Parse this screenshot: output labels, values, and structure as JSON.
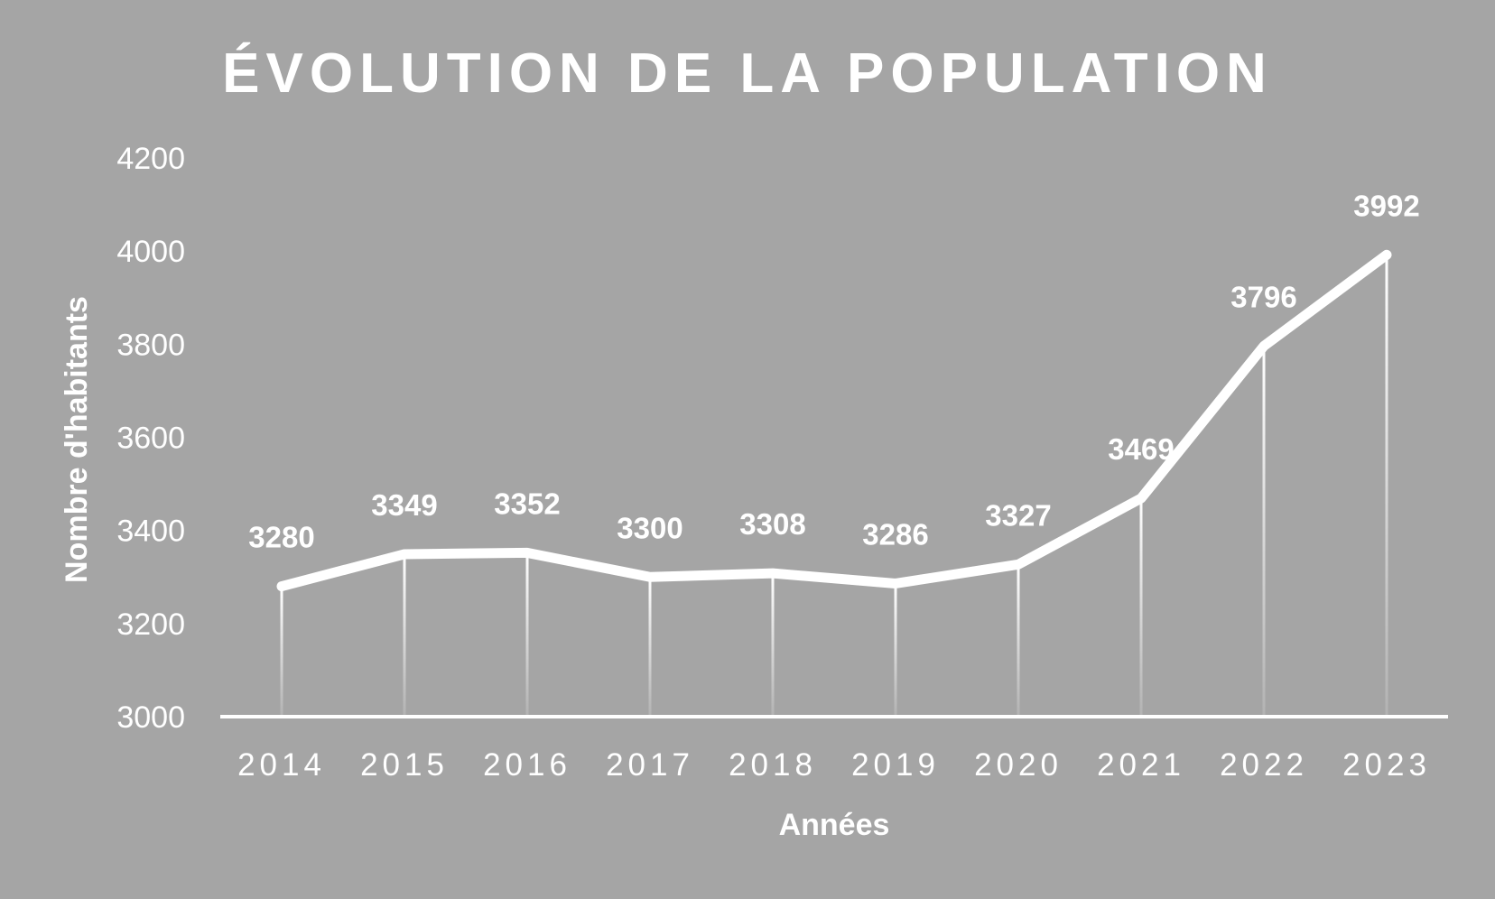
{
  "chart_data": {
    "type": "line",
    "title": "ÉVOLUTION DE LA POPULATION",
    "xlabel": "Années",
    "ylabel": "Nombre d'habitants",
    "categories": [
      "2014",
      "2015",
      "2016",
      "2017",
      "2018",
      "2019",
      "2020",
      "2021",
      "2022",
      "2023"
    ],
    "values": [
      3280,
      3349,
      3352,
      3300,
      3308,
      3286,
      3327,
      3469,
      3796,
      3992
    ],
    "ylim": [
      3000,
      4200
    ],
    "yticks": [
      3000,
      3200,
      3400,
      3600,
      3800,
      4000,
      4200
    ],
    "grid": false,
    "drop_lines": true,
    "data_labels": true,
    "colors": {
      "background": "#a5a5a5",
      "line": "#ffffff",
      "text": "#ffffff"
    }
  }
}
